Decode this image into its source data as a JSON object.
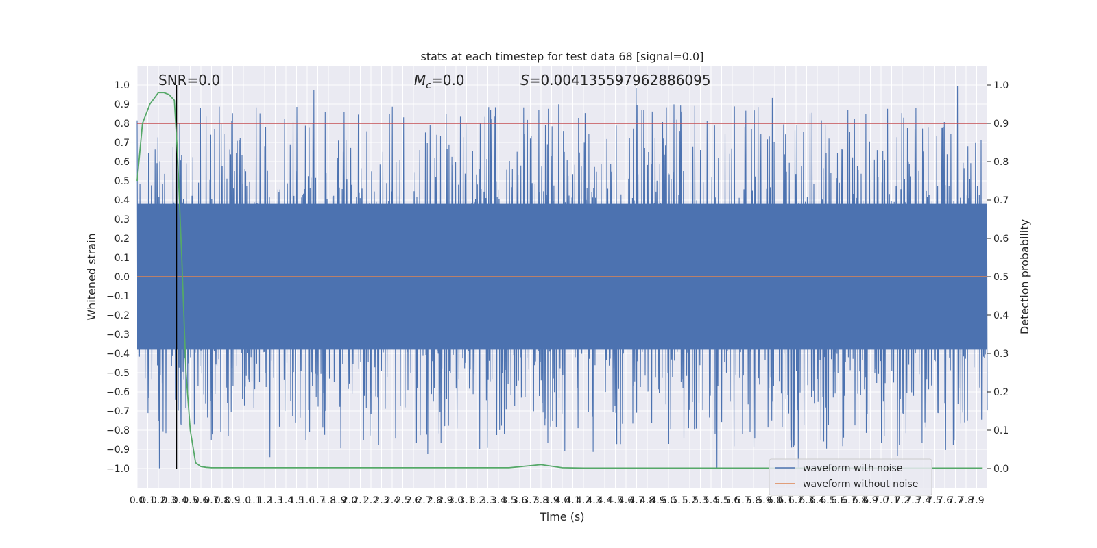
{
  "chart_data": {
    "type": "line",
    "title": "stats at each timestep for test data 68 [signal=0.0]",
    "xlabel": "Time (s)",
    "ylabel_left": "Whitened strain",
    "ylabel_right": "Detection probability",
    "xlim": [
      0.0,
      8.0
    ],
    "ylim_left": [
      -1.1,
      1.1
    ],
    "ylim_right": [
      -0.05,
      1.05
    ],
    "x_tick_labels": [
      "0.0",
      "0.1",
      "0.2",
      "0.3",
      "0.4",
      "0.5",
      "0.6",
      "0.7",
      "0.8",
      "0.9",
      "1.0",
      "1.1",
      "1.2",
      "1.3",
      "1.4",
      "1.5",
      "1.6",
      "1.7",
      "1.8",
      "1.9",
      "2.0",
      "2.1",
      "2.2",
      "2.3",
      "2.4",
      "2.5",
      "2.6",
      "2.7",
      "2.8",
      "2.9",
      "3.0",
      "3.1",
      "3.2",
      "3.3",
      "3.4",
      "3.5",
      "3.6",
      "3.7",
      "3.8",
      "3.9",
      "4.0",
      "4.1",
      "4.2",
      "4.3",
      "4.4",
      "4.5",
      "4.6",
      "4.7",
      "4.8",
      "4.9",
      "5.0",
      "5.1",
      "5.2",
      "5.3",
      "5.4",
      "5.5",
      "5.6",
      "5.7",
      "5.8",
      "5.9",
      "6.0",
      "6.1",
      "6.2",
      "6.3",
      "6.4",
      "6.5",
      "6.6",
      "6.7",
      "6.8",
      "6.9",
      "7.0",
      "7.1",
      "7.2",
      "7.3",
      "7.4",
      "7.5",
      "7.6",
      "7.7",
      "7.8",
      "7.9"
    ],
    "y_left_tick_labels": [
      "1.0",
      "0.9",
      "0.8",
      "0.7",
      "0.6",
      "0.5",
      "0.4",
      "0.3",
      "0.2",
      "0.1",
      "0.0",
      "-0.1",
      "-0.2",
      "-0.3",
      "-0.4",
      "-0.5",
      "-0.6",
      "-0.7",
      "-0.8",
      "-0.9",
      "-1.0"
    ],
    "y_right_tick_labels": [
      "1.0",
      "0.9",
      "0.8",
      "0.7",
      "0.6",
      "0.5",
      "0.4",
      "0.3",
      "0.2",
      "0.1",
      "0.0"
    ],
    "annotations": {
      "snr": "SNR=0.0",
      "mc_symbol": "M",
      "mc_sub": "c",
      "mc_value": "=0.0",
      "s_symbol": "S",
      "s_value": "=0.004135597962886095"
    },
    "series": [
      {
        "name": "waveform with noise",
        "color": "#4c72b0",
        "style": "noise envelope, peaks up to about ±1.0"
      },
      {
        "name": "waveform without noise",
        "color": "#dd8452",
        "values_constant": 0.0
      },
      {
        "name": "detection probability",
        "color": "#55a868",
        "x": [
          0.0,
          0.05,
          0.12,
          0.2,
          0.25,
          0.3,
          0.35,
          0.38,
          0.42,
          0.46,
          0.5,
          0.55,
          0.6,
          0.65,
          0.7,
          0.8,
          1.0,
          1.5,
          2.0,
          2.5,
          3.0,
          3.5,
          3.8,
          4.0,
          4.2,
          4.5,
          5.0,
          6.0,
          7.0,
          7.95
        ],
        "values": [
          0.75,
          0.9,
          0.95,
          0.98,
          0.98,
          0.975,
          0.96,
          0.82,
          0.55,
          0.25,
          0.1,
          0.015,
          0.005,
          0.003,
          0.002,
          0.002,
          0.002,
          0.002,
          0.002,
          0.002,
          0.002,
          0.002,
          0.01,
          0.002,
          0.001,
          0.001,
          0.001,
          0.001,
          0.001,
          0.001
        ]
      },
      {
        "name": "threshold",
        "color": "#c44e52",
        "values_constant": 0.9
      },
      {
        "name": "marker",
        "color": "#000000",
        "x_constant": 0.37
      }
    ],
    "legend": {
      "position": "lower-right",
      "entries": [
        {
          "label": "waveform with noise",
          "color": "#4c72b0"
        },
        {
          "label": "waveform without noise",
          "color": "#dd8452"
        }
      ]
    },
    "colors": {
      "background": "#eaeaf2",
      "grid": "#ffffff",
      "noise": "#4c72b0",
      "clean": "#dd8452",
      "probability": "#55a868",
      "threshold": "#c44e52",
      "marker": "#000000"
    }
  }
}
